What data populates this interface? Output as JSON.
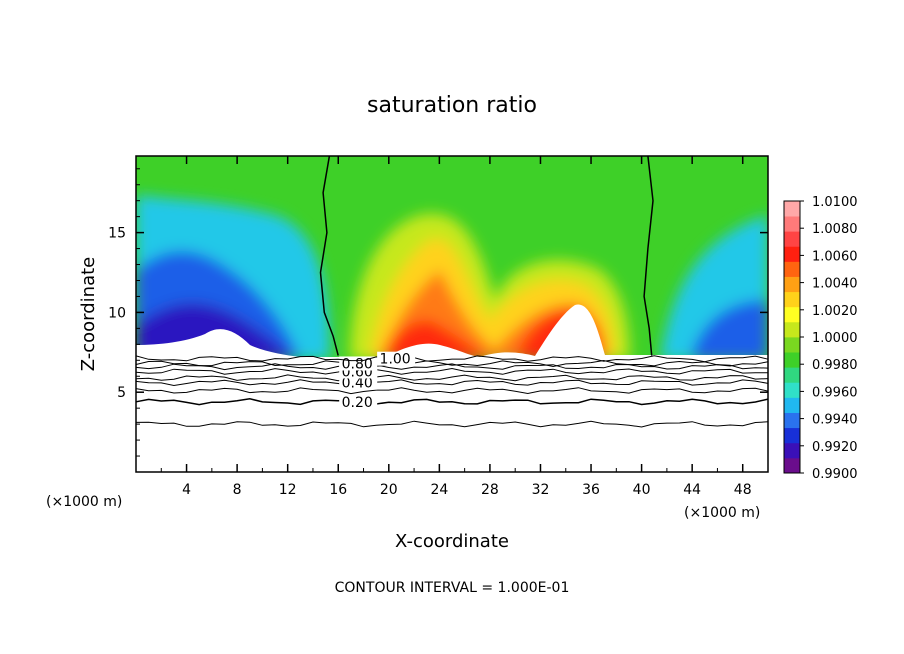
{
  "chart_data": {
    "type": "heatmap",
    "title": "saturation ratio",
    "xlabel": "X-coordinate",
    "ylabel": "Z-coordinate",
    "xunit_left": "(×1000 m)",
    "xunit_right": "(×1000 m)",
    "footer": "CONTOUR INTERVAL = 1.000E-01",
    "xlim": [
      0,
      50
    ],
    "ylim": [
      0,
      19.8
    ],
    "xticks": [
      4,
      8,
      12,
      16,
      20,
      24,
      28,
      32,
      36,
      40,
      44,
      48
    ],
    "xtick_labels": [
      "4",
      "8",
      "12",
      "16",
      "20",
      "24",
      "28",
      "32",
      "36",
      "40",
      "44",
      "48"
    ],
    "yticks": [
      5,
      10,
      15
    ],
    "ytick_labels": [
      "5",
      "10",
      "15"
    ],
    "colorbar": {
      "range": [
        0.99,
        1.01
      ],
      "tick_values": [
        0.99,
        0.992,
        0.994,
        0.996,
        0.998,
        1.0,
        1.002,
        1.004,
        1.006,
        1.008,
        1.01
      ],
      "tick_labels": [
        "0.9900",
        "0.9920",
        "0.9940",
        "0.9960",
        "0.9980",
        "1.0000",
        "1.0020",
        "1.0040",
        "1.0060",
        "1.0080",
        "1.0100"
      ],
      "colors": [
        "#6a0d8c",
        "#3a10b8",
        "#1830d8",
        "#2a72ee",
        "#20b8f0",
        "#30e0c8",
        "#30d880",
        "#3ed028",
        "#7ad820",
        "#c6e81c",
        "#ffff22",
        "#ffd21a",
        "#ffa014",
        "#ff6410",
        "#ff2010",
        "#ff4444",
        "#ff7a7a",
        "#ffa8a8"
      ]
    },
    "contour_lines": [
      {
        "label": "0.20",
        "z": 4.4,
        "label_x": 17.5
      },
      {
        "label": "0.40",
        "z": 5.6,
        "label_x": 17.5
      },
      {
        "label": "0.60",
        "z": 6.3,
        "label_x": 17.5
      },
      {
        "label": "0.80",
        "z": 6.8,
        "label_x": 17.5
      },
      {
        "label": "1.00",
        "z": 7.1,
        "label_x": 20.5
      }
    ],
    "unlabeled_contour_lines": [
      3.0,
      5.1,
      5.9,
      6.6
    ],
    "saturation_boundary_curves": [
      {
        "x": [
          15.3,
          14.8,
          15.1,
          14.6,
          14.9,
          15.6,
          16.0
        ],
        "z": [
          19.8,
          17.5,
          15.0,
          12.5,
          10.0,
          8.5,
          7.3
        ]
      },
      {
        "x": [
          40.5,
          40.9,
          40.5,
          40.2,
          40.6,
          40.8
        ],
        "z": [
          19.8,
          17.0,
          14.0,
          11.0,
          9.0,
          7.3
        ]
      }
    ]
  }
}
